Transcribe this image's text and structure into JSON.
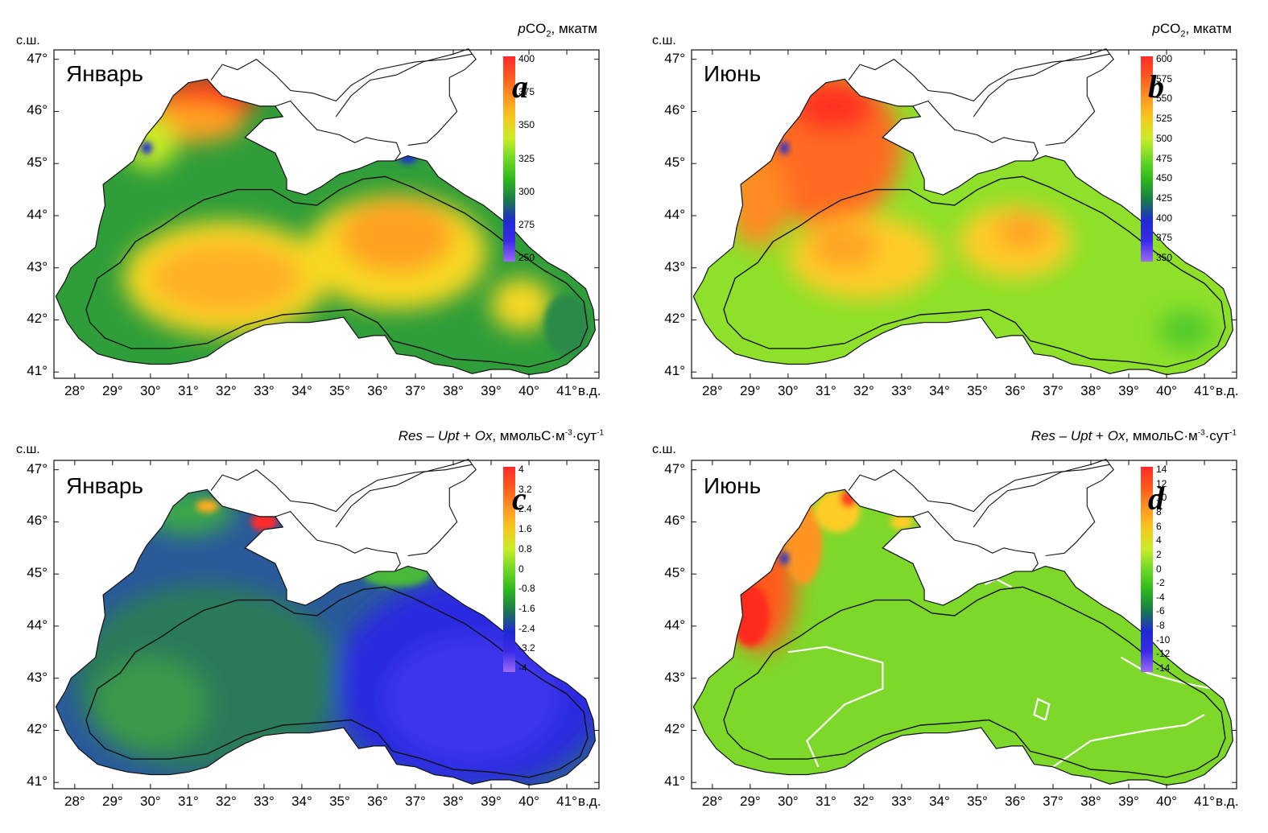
{
  "figure": {
    "lat_unit": "с.ш.",
    "lon_unit": "в.д.",
    "lat_labels": [
      "47°",
      "46°",
      "45°",
      "44°",
      "43°",
      "42°",
      "41°"
    ],
    "lon_labels": [
      "28°",
      "29°",
      "30°",
      "31°",
      "32°",
      "33°",
      "34°",
      "35°",
      "36°",
      "37°",
      "38°",
      "39°",
      "40°",
      "41°"
    ]
  },
  "panels": [
    {
      "id": "a",
      "letter": "a",
      "month": "Январь",
      "variable": "pCO2",
      "unit": "мкатм",
      "colorbar_ticks": [
        "400",
        "375",
        "350",
        "325",
        "300",
        "275",
        "250"
      ],
      "colormap": [
        "#ff2a2a",
        "#ff5a1e",
        "#ff9422",
        "#f5c81e",
        "#c9ec2a",
        "#6ed826",
        "#2db81c",
        "#1a7a4a",
        "#1f2ad0",
        "#3a2ae8",
        "#9c6af5"
      ],
      "shelf_color": "#2f9e3a",
      "blobs": [
        {
          "lon": 31.5,
          "lat": 46.25,
          "rx": 1.3,
          "ry": 0.45,
          "color": "#ff2a1e"
        },
        {
          "lon": 31.0,
          "lat": 45.8,
          "rx": 1.5,
          "ry": 0.4,
          "color": "#ffa020"
        },
        {
          "lon": 30.0,
          "lat": 45.4,
          "rx": 0.7,
          "ry": 0.5,
          "color": "#c8ec28"
        },
        {
          "lon": 32.0,
          "lat": 42.8,
          "rx": 2.7,
          "ry": 1.1,
          "color": "#f7d824"
        },
        {
          "lon": 32.0,
          "lat": 42.8,
          "rx": 2.0,
          "ry": 0.7,
          "color": "#ffb028"
        },
        {
          "lon": 36.5,
          "lat": 43.3,
          "rx": 2.4,
          "ry": 1.1,
          "color": "#f7d824"
        },
        {
          "lon": 36.5,
          "lat": 43.6,
          "rx": 1.5,
          "ry": 0.7,
          "color": "#ffa020"
        },
        {
          "lon": 39.8,
          "lat": 42.3,
          "rx": 0.8,
          "ry": 0.5,
          "color": "#f7d824"
        },
        {
          "lon": 41.0,
          "lat": 41.9,
          "rx": 0.6,
          "ry": 0.6,
          "color": "#2a8a4a"
        },
        {
          "lon": 29.9,
          "lat": 45.3,
          "rx": 0.15,
          "ry": 0.12,
          "color": "#2030d0"
        },
        {
          "lon": 36.8,
          "lat": 45.1,
          "rx": 0.25,
          "ry": 0.1,
          "color": "#2030d0"
        }
      ]
    },
    {
      "id": "b",
      "letter": "b",
      "month": "Июнь",
      "variable": "pCO2",
      "unit": "мкатм",
      "colorbar_ticks": [
        "600",
        "575",
        "550",
        "525",
        "500",
        "475",
        "450",
        "425",
        "400",
        "375",
        "350"
      ],
      "colormap": [
        "#ff2a2a",
        "#ff5a1e",
        "#ff9422",
        "#f5c81e",
        "#c9ec2a",
        "#6ed826",
        "#2db81c",
        "#1a7a4a",
        "#1f2ad0",
        "#3a2ae8",
        "#9c6af5"
      ],
      "shelf_color": "#8ee02a",
      "blobs": [
        {
          "lon": 31.0,
          "lat": 45.3,
          "rx": 2.0,
          "ry": 1.5,
          "color": "#ff6a22"
        },
        {
          "lon": 31.2,
          "lat": 46.1,
          "rx": 1.1,
          "ry": 0.5,
          "color": "#ff3322"
        },
        {
          "lon": 29.2,
          "lat": 44.3,
          "rx": 0.8,
          "ry": 0.9,
          "color": "#ff8a24"
        },
        {
          "lon": 32.0,
          "lat": 43.2,
          "rx": 2.0,
          "ry": 0.8,
          "color": "#ffcc28"
        },
        {
          "lon": 31.5,
          "lat": 43.4,
          "rx": 0.9,
          "ry": 0.4,
          "color": "#ffa228"
        },
        {
          "lon": 36.0,
          "lat": 43.5,
          "rx": 1.5,
          "ry": 0.7,
          "color": "#ffcc28"
        },
        {
          "lon": 36.2,
          "lat": 43.7,
          "rx": 0.7,
          "ry": 0.35,
          "color": "#ffa228"
        },
        {
          "lon": 40.5,
          "lat": 41.8,
          "rx": 0.7,
          "ry": 0.35,
          "color": "#4ec82a"
        },
        {
          "lon": 29.9,
          "lat": 45.3,
          "rx": 0.12,
          "ry": 0.12,
          "color": "#2030d0"
        }
      ]
    },
    {
      "id": "c",
      "letter": "c",
      "month": "Январь",
      "variable": "Res – Upt + Ox",
      "unit": "ммольС·м-3·сут-1",
      "colorbar_ticks": [
        "4",
        "3.2",
        "2.4",
        "1.6",
        "0.8",
        "0",
        "-0.8",
        "-1.6",
        "-2.4",
        "-3.2",
        "-4"
      ],
      "colormap": [
        "#ff2a2a",
        "#ff5a1e",
        "#ff9422",
        "#f5c81e",
        "#c9ec2a",
        "#6ed826",
        "#2db81c",
        "#1a7a4a",
        "#1f2ad0",
        "#3a2ae8",
        "#9c6af5"
      ],
      "shelf_color": "#2a5a9a",
      "blobs": [
        {
          "lon": 31.5,
          "lat": 43.0,
          "rx": 3.5,
          "ry": 1.8,
          "color": "#2a7a5a"
        },
        {
          "lon": 30.0,
          "lat": 42.5,
          "rx": 1.5,
          "ry": 0.9,
          "color": "#3a9a4a"
        },
        {
          "lon": 38.5,
          "lat": 42.9,
          "rx": 3.6,
          "ry": 2.0,
          "color": "#2a2ae0"
        },
        {
          "lon": 38.5,
          "lat": 42.6,
          "rx": 2.3,
          "ry": 1.2,
          "color": "#3e36ee"
        },
        {
          "lon": 31.0,
          "lat": 46.2,
          "rx": 1.2,
          "ry": 0.45,
          "color": "#3aa84a"
        },
        {
          "lon": 33.0,
          "lat": 46.0,
          "rx": 0.35,
          "ry": 0.18,
          "color": "#ff2a2a"
        },
        {
          "lon": 31.5,
          "lat": 46.3,
          "rx": 0.3,
          "ry": 0.12,
          "color": "#ffaa22"
        },
        {
          "lon": 36.5,
          "lat": 45.0,
          "rx": 0.9,
          "ry": 0.25,
          "color": "#4ab83a"
        }
      ]
    },
    {
      "id": "d",
      "letter": "d",
      "month": "Июнь",
      "variable": "Res – Upt + Ox",
      "unit": "ммольС·м-3·сут-1",
      "colorbar_ticks": [
        "14",
        "12",
        "10",
        "8",
        "6",
        "4",
        "2",
        "0",
        "-2",
        "-4",
        "-6",
        "-8",
        "-10",
        "-12",
        "-14"
      ],
      "colormap": [
        "#ff2a2a",
        "#ff5a1e",
        "#ff9422",
        "#f5c81e",
        "#c9ec2a",
        "#6ed826",
        "#2db81c",
        "#1a7a4a",
        "#1f2ad0",
        "#3a2ae8",
        "#9c6af5"
      ],
      "shelf_color": "#7ed82a",
      "blobs": [
        {
          "lon": 29.3,
          "lat": 44.8,
          "rx": 0.9,
          "ry": 1.3,
          "color": "#ff5a1e"
        },
        {
          "lon": 29.0,
          "lat": 44.2,
          "rx": 0.5,
          "ry": 0.6,
          "color": "#ff2a1e"
        },
        {
          "lon": 30.4,
          "lat": 45.6,
          "rx": 0.5,
          "ry": 0.8,
          "color": "#ff9422"
        },
        {
          "lon": 31.3,
          "lat": 46.2,
          "rx": 0.6,
          "ry": 0.4,
          "color": "#ffcc28"
        },
        {
          "lon": 31.6,
          "lat": 46.45,
          "rx": 0.2,
          "ry": 0.15,
          "color": "#ff3a22"
        },
        {
          "lon": 33.0,
          "lat": 46.0,
          "rx": 0.3,
          "ry": 0.15,
          "color": "#ffcc28"
        },
        {
          "lon": 29.9,
          "lat": 45.3,
          "rx": 0.12,
          "ry": 0.12,
          "color": "#2030d0"
        }
      ],
      "contours": [
        [
          [
            30.0,
            43.5
          ],
          [
            31.0,
            43.6
          ],
          [
            32.5,
            43.3
          ],
          [
            32.5,
            42.8
          ],
          [
            31.5,
            42.5
          ],
          [
            30.5,
            41.8
          ],
          [
            30.8,
            41.3
          ]
        ],
        [
          [
            37.0,
            41.3
          ],
          [
            38.0,
            41.8
          ],
          [
            39.5,
            42.0
          ],
          [
            40.5,
            42.1
          ],
          [
            41.0,
            42.3
          ]
        ],
        [
          [
            38.8,
            43.4
          ],
          [
            39.5,
            43.1
          ],
          [
            40.5,
            42.9
          ],
          [
            41.2,
            42.8
          ]
        ],
        [
          [
            36.8,
            42.2
          ],
          [
            36.9,
            42.5
          ],
          [
            36.6,
            42.6
          ],
          [
            36.5,
            42.3
          ],
          [
            36.8,
            42.2
          ]
        ],
        [
          [
            35.2,
            44.8
          ],
          [
            35.5,
            44.9
          ],
          [
            35.9,
            44.75
          ]
        ]
      ]
    }
  ]
}
